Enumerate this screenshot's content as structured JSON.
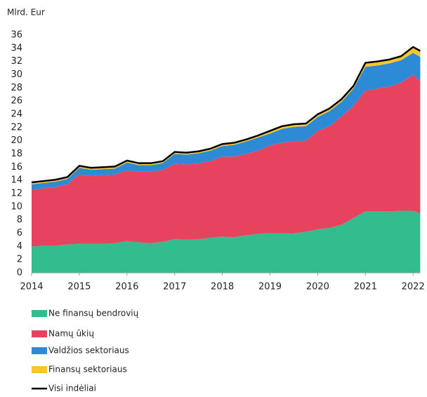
{
  "chart_data": {
    "type": "stacked_area",
    "y_label": "Mlrd. Eur",
    "x": [
      2014,
      2014.25,
      2014.5,
      2014.75,
      2015,
      2015.25,
      2015.5,
      2015.75,
      2016,
      2016.25,
      2016.5,
      2016.75,
      2017,
      2017.25,
      2017.5,
      2017.75,
      2018,
      2018.25,
      2018.5,
      2018.75,
      2019,
      2019.25,
      2019.5,
      2019.75,
      2020,
      2020.25,
      2020.5,
      2020.75,
      2021,
      2021.25,
      2021.5,
      2021.75,
      2022,
      2022.15
    ],
    "xlim": [
      2014,
      2022.15
    ],
    "xticks": [
      2014,
      2015,
      2016,
      2017,
      2018,
      2019,
      2020,
      2021,
      2022
    ],
    "ylim": [
      0,
      36
    ],
    "yticks": [
      0,
      2,
      4,
      6,
      8,
      10,
      12,
      14,
      16,
      18,
      20,
      22,
      24,
      26,
      28,
      30,
      32,
      34,
      36
    ],
    "series": [
      {
        "name": "Ne finansų bendrovių",
        "color": "#33bd8f",
        "values": [
          4.0,
          4.1,
          4.1,
          4.3,
          4.4,
          4.4,
          4.4,
          4.5,
          4.8,
          4.6,
          4.5,
          4.7,
          5.1,
          5.0,
          5.1,
          5.3,
          5.5,
          5.4,
          5.7,
          5.9,
          6.0,
          6.0,
          6.0,
          6.2,
          6.6,
          6.8,
          7.3,
          8.3,
          9.3,
          9.3,
          9.3,
          9.4,
          9.4,
          9.0
        ]
      },
      {
        "name": "Namų ūkių",
        "color": "#e8435e",
        "values": [
          8.6,
          8.7,
          8.9,
          9.1,
          10.5,
          10.3,
          10.4,
          10.4,
          10.7,
          10.7,
          10.8,
          10.9,
          11.4,
          11.4,
          11.5,
          11.6,
          12.1,
          12.2,
          12.3,
          12.6,
          13.3,
          13.7,
          13.9,
          13.8,
          14.9,
          15.4,
          16.4,
          17.0,
          18.3,
          18.6,
          18.9,
          19.4,
          20.6,
          20.0
        ]
      },
      {
        "name": "Valdžios sektoriaus",
        "color": "#2d8bd6",
        "values": [
          0.8,
          0.8,
          0.8,
          0.8,
          1.0,
          0.9,
          0.9,
          0.9,
          1.2,
          1.0,
          1.0,
          1.0,
          1.5,
          1.5,
          1.5,
          1.6,
          1.6,
          1.8,
          1.9,
          2.0,
          1.8,
          2.1,
          2.2,
          2.2,
          2.1,
          2.3,
          2.2,
          2.6,
          3.6,
          3.5,
          3.5,
          3.4,
          3.3,
          3.7
        ]
      },
      {
        "name": "Finansų sektoriaus",
        "color": "#fbc531",
        "values": [
          0.3,
          0.3,
          0.3,
          0.3,
          0.3,
          0.3,
          0.3,
          0.3,
          0.3,
          0.3,
          0.3,
          0.3,
          0.3,
          0.3,
          0.3,
          0.3,
          0.3,
          0.3,
          0.3,
          0.3,
          0.4,
          0.4,
          0.4,
          0.4,
          0.4,
          0.4,
          0.4,
          0.4,
          0.6,
          0.6,
          0.6,
          0.6,
          0.9,
          0.9
        ]
      }
    ],
    "total": {
      "name": "Visi indėliai",
      "color": "#000000",
      "values": [
        13.7,
        13.9,
        14.1,
        14.5,
        16.2,
        15.9,
        16.0,
        16.1,
        17.0,
        16.6,
        16.6,
        16.9,
        18.3,
        18.2,
        18.4,
        18.8,
        19.5,
        19.7,
        20.2,
        20.8,
        21.5,
        22.2,
        22.5,
        22.6,
        24.0,
        24.9,
        26.3,
        28.3,
        31.8,
        32.0,
        32.3,
        32.8,
        34.2,
        33.6
      ]
    }
  }
}
